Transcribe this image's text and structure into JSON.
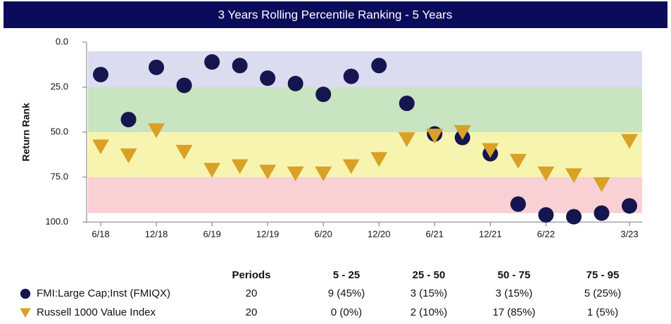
{
  "chart_data": {
    "type": "scatter",
    "title": "3 Years Rolling Percentile Ranking - 5 Years",
    "y_label": "Return Rank",
    "y_inverted": true,
    "ylim": [
      0,
      100
    ],
    "yticks": [
      {
        "value": 0,
        "label": "0.0"
      },
      {
        "value": 25,
        "label": "25.0"
      },
      {
        "value": 50,
        "label": "50.0"
      },
      {
        "value": 75,
        "label": "75.0"
      },
      {
        "value": 100,
        "label": "100.0"
      }
    ],
    "categories": [
      "6/18",
      null,
      "12/18",
      null,
      "6/19",
      null,
      "12/19",
      null,
      "6/20",
      null,
      "12/20",
      null,
      "6/21",
      null,
      "12/21",
      null,
      "6/22",
      null,
      null,
      "3/23"
    ],
    "bands": [
      {
        "from": 5,
        "to": 25,
        "color": "#dcdcf0"
      },
      {
        "from": 25,
        "to": 50,
        "color": "#c8e4c0"
      },
      {
        "from": 50,
        "to": 75,
        "color": "#f7f4b0"
      },
      {
        "from": 75,
        "to": 95,
        "color": "#f9d0d4"
      }
    ],
    "series": [
      {
        "name": "FMI:Large Cap;Inst (FMIQX)",
        "marker": "circle",
        "color": "#15154f",
        "values": [
          18,
          43,
          14,
          24,
          11,
          13,
          20,
          23,
          29,
          19,
          13,
          34,
          51,
          53,
          62,
          90,
          96,
          97,
          95,
          91
        ]
      },
      {
        "name": "Russell 1000 Value Index",
        "marker": "triangle",
        "color": "#d9a126",
        "values": [
          58,
          63,
          49,
          61,
          71,
          69,
          72,
          73,
          73,
          69,
          65,
          54,
          52,
          50,
          60,
          66,
          73,
          74,
          79,
          55
        ]
      }
    ],
    "summary": {
      "columns": [
        "Periods",
        "5 - 25",
        "25 - 50",
        "50 - 75",
        "75 - 95"
      ],
      "rows": [
        [
          "20",
          "9 (45%)",
          "3 (15%)",
          "3 (15%)",
          "5 (25%)"
        ],
        [
          "20",
          "0 (0%)",
          "2 (10%)",
          "17 (85%)",
          "1 (5%)"
        ]
      ]
    }
  }
}
